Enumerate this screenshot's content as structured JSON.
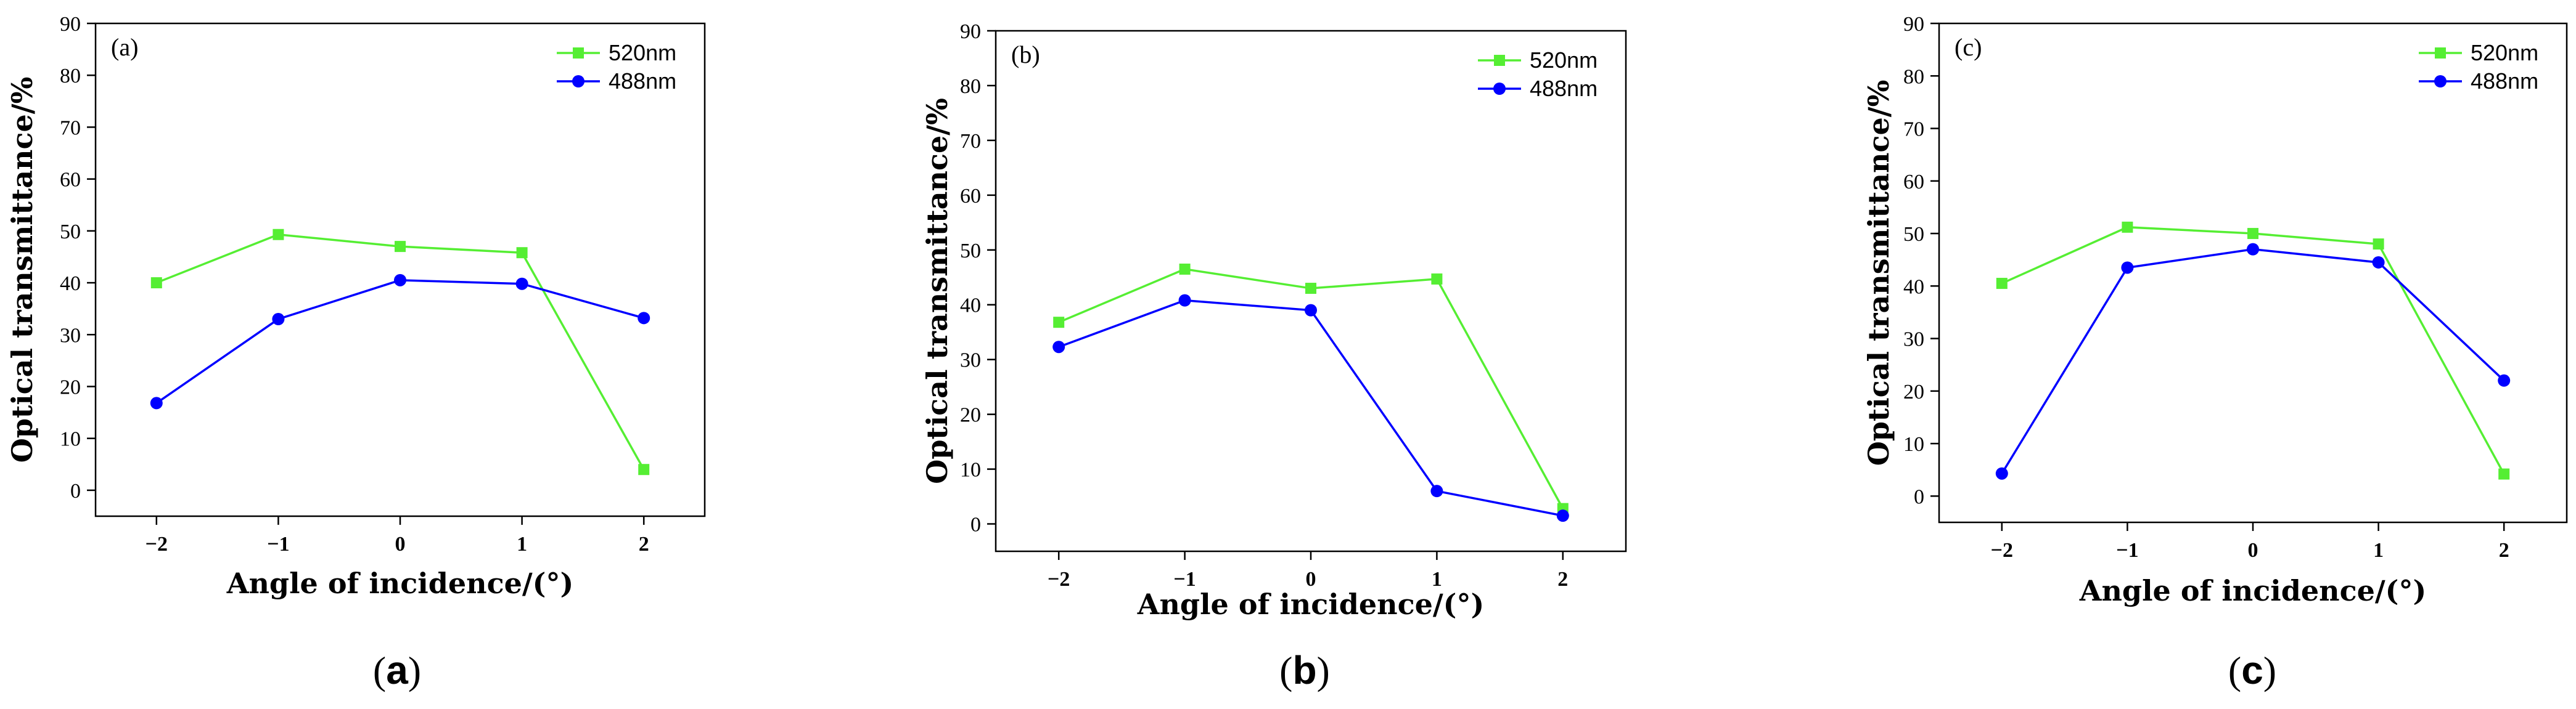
{
  "chart_data": [
    {
      "type": "line",
      "panel_label": "(a)",
      "caption": "a",
      "xlabel": "Angle of incidence/(°)",
      "ylabel": "Optical transmittance/%",
      "x": [
        -2,
        -1,
        0,
        1,
        2
      ],
      "x_ticks": [
        "−2",
        "−1",
        "0",
        "1",
        "2"
      ],
      "y_ticks": [
        "0",
        "10",
        "20",
        "30",
        "40",
        "50",
        "60",
        "70",
        "80",
        "90"
      ],
      "ylim": [
        -5,
        90
      ],
      "xlim": [
        -2.5,
        2.5
      ],
      "series": [
        {
          "name": "520nm",
          "color": "#55ee33",
          "marker": "square",
          "values": [
            40,
            49.3,
            47,
            45.8,
            4
          ]
        },
        {
          "name": "488nm",
          "color": "#0000ff",
          "marker": "circle",
          "values": [
            16.8,
            33,
            40.5,
            39.8,
            33.2
          ]
        }
      ]
    },
    {
      "type": "line",
      "panel_label": "(b)",
      "caption": "b",
      "xlabel": "Angle of incidence/(°)",
      "ylabel": "Optical transmittance/%",
      "x": [
        -2,
        -1,
        0,
        1,
        2
      ],
      "x_ticks": [
        "−2",
        "−1",
        "0",
        "1",
        "2"
      ],
      "y_ticks": [
        "0",
        "10",
        "20",
        "30",
        "40",
        "50",
        "60",
        "70",
        "80",
        "90"
      ],
      "ylim": [
        -5,
        90
      ],
      "xlim": [
        -2.5,
        2.5
      ],
      "series": [
        {
          "name": "520nm",
          "color": "#55ee33",
          "marker": "square",
          "values": [
            36.8,
            46.5,
            43,
            44.7,
            2.8
          ]
        },
        {
          "name": "488nm",
          "color": "#0000ff",
          "marker": "circle",
          "values": [
            32.3,
            40.8,
            39,
            6,
            1.5
          ]
        }
      ]
    },
    {
      "type": "line",
      "panel_label": "(c)",
      "caption": "c",
      "xlabel": "Angle of incidence/(°)",
      "ylabel": "Optical transmittance/%",
      "x": [
        -2,
        -1,
        0,
        1,
        2
      ],
      "x_ticks": [
        "−2",
        "−1",
        "0",
        "1",
        "2"
      ],
      "y_ticks": [
        "0",
        "10",
        "20",
        "30",
        "40",
        "50",
        "60",
        "70",
        "80",
        "90"
      ],
      "ylim": [
        -5,
        90
      ],
      "xlim": [
        -2.5,
        2.5
      ],
      "series": [
        {
          "name": "520nm",
          "color": "#55ee33",
          "marker": "square",
          "values": [
            40.5,
            51.2,
            50,
            48,
            4.2
          ]
        },
        {
          "name": "488nm",
          "color": "#0000ff",
          "marker": "circle",
          "values": [
            4.3,
            43.5,
            47,
            44.5,
            22
          ]
        }
      ]
    }
  ]
}
